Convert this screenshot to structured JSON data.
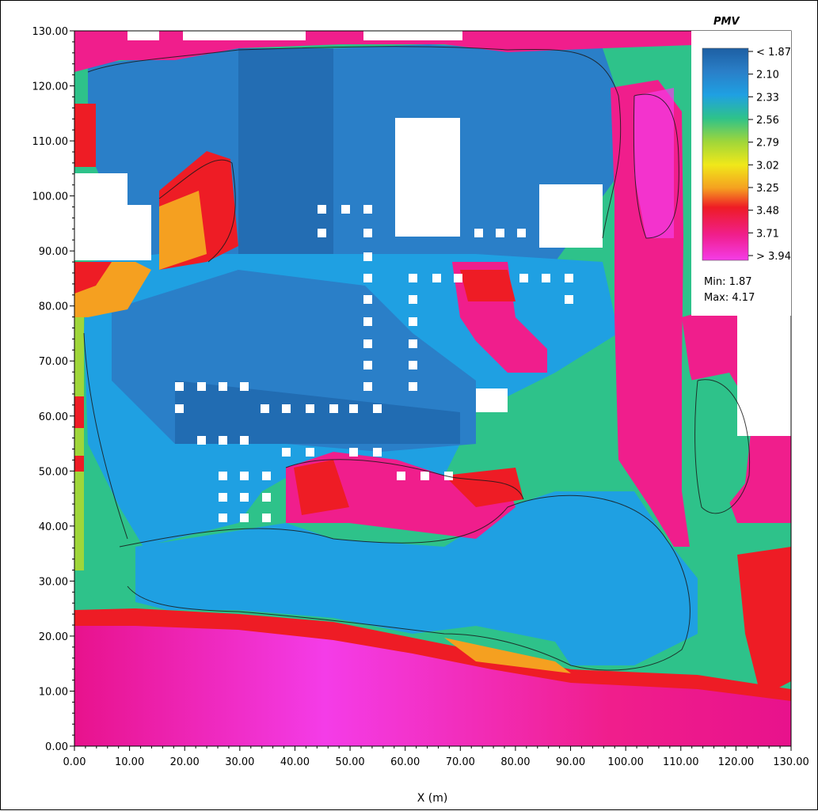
{
  "chart_data": {
    "type": "heatmap",
    "title": "",
    "xlabel": "X (m)",
    "ylabel": "",
    "xlim": [
      0,
      130
    ],
    "ylim": [
      0,
      130
    ],
    "x_ticks": [
      "0.00",
      "10.00",
      "20.00",
      "30.00",
      "40.00",
      "50.00",
      "60.00",
      "70.00",
      "80.00",
      "90.00",
      "100.00",
      "110.00",
      "120.00",
      "130.00"
    ],
    "y_ticks": [
      "0.00",
      "10.00",
      "20.00",
      "30.00",
      "40.00",
      "50.00",
      "60.00",
      "70.00",
      "80.00",
      "90.00",
      "100.00",
      "110.00",
      "120.00",
      "130.00"
    ],
    "legend": {
      "title": "PMV",
      "placement": "top-right",
      "levels": [
        "< 1.87",
        "2.10",
        "2.33",
        "2.56",
        "2.79",
        "3.02",
        "3.25",
        "3.48",
        "3.71",
        "> 3.94"
      ],
      "colors": [
        "#1d5fa3",
        "#2a7fc8",
        "#1fa0e2",
        "#2ec28a",
        "#9fd63a",
        "#f0e81a",
        "#f5a020",
        "#ee1c25",
        "#f01e8c",
        "#f43ce8"
      ],
      "min_label": "Min: 1.87",
      "max_label": "Max: 4.17"
    },
    "min": 1.87,
    "max": 4.17,
    "grid": false,
    "regions": [
      {
        "area": "south band (y 0–22)",
        "pmv": "> 3.94"
      },
      {
        "area": "central courtyard (x 20–100, y 30–90)",
        "pmv": "2.10–2.33"
      },
      {
        "area": "east corridor (x 100–112, y 40–125)",
        "pmv": "3.71–3.94"
      },
      {
        "area": "south lake zone (x 40–110, y 15–40)",
        "pmv": "2.33"
      },
      {
        "area": "west edge (x 0–3, y 25–110)",
        "pmv": "2.79–3.25"
      }
    ]
  }
}
